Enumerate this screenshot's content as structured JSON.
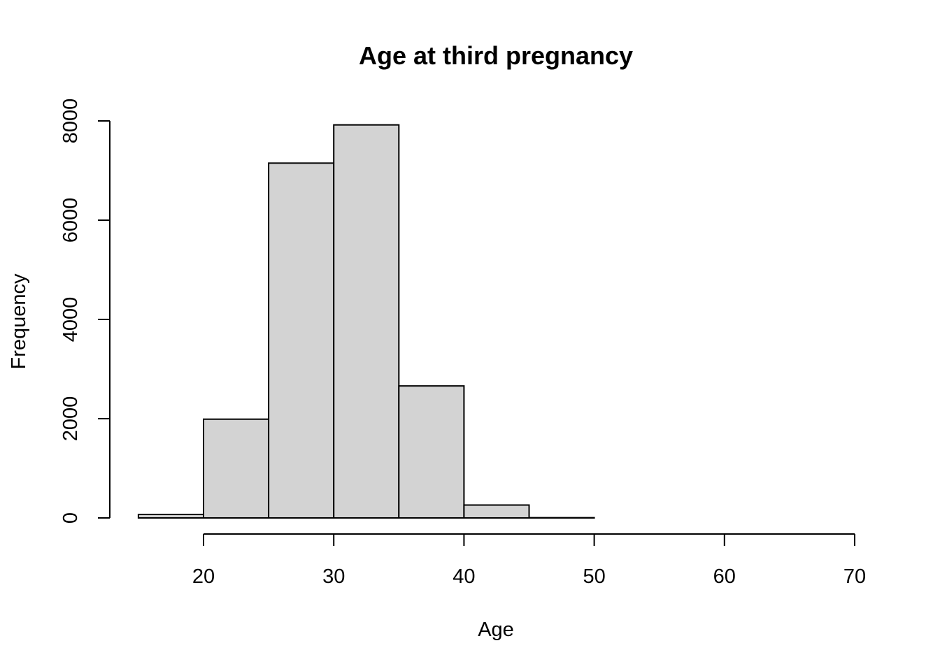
{
  "chart_data": {
    "type": "bar",
    "title": "Age at third pregnancy",
    "xlabel": "Age",
    "ylabel": "Frequency",
    "xlim": [
      15,
      70
    ],
    "ylim": [
      0,
      8000
    ],
    "x_ticks": [
      20,
      30,
      40,
      50,
      60,
      70
    ],
    "y_ticks": [
      0,
      2000,
      4000,
      6000,
      8000
    ],
    "bins": [
      {
        "start": 15,
        "end": 20,
        "value": 70
      },
      {
        "start": 20,
        "end": 25,
        "value": 1990
      },
      {
        "start": 25,
        "end": 30,
        "value": 7150
      },
      {
        "start": 30,
        "end": 35,
        "value": 7920
      },
      {
        "start": 35,
        "end": 40,
        "value": 2660
      },
      {
        "start": 40,
        "end": 45,
        "value": 260
      },
      {
        "start": 45,
        "end": 50,
        "value": 5
      },
      {
        "start": 50,
        "end": 55,
        "value": 0
      },
      {
        "start": 55,
        "end": 60,
        "value": 0
      },
      {
        "start": 60,
        "end": 65,
        "value": 0
      },
      {
        "start": 65,
        "end": 70,
        "value": 0
      }
    ],
    "colors": {
      "bar_fill": "#d3d3d3",
      "bar_stroke": "#000000"
    },
    "grid": false,
    "legend": "none"
  }
}
